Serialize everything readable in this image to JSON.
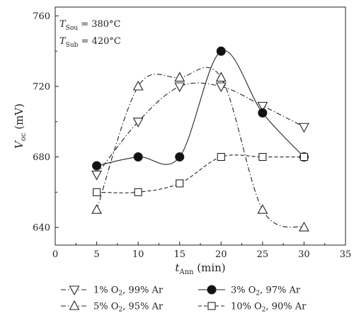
{
  "chart_data": {
    "type": "line",
    "xlabel": {
      "main": "t",
      "sub": "Ann",
      "unit": " (min)"
    },
    "ylabel": {
      "main": "V",
      "sub": "oc",
      "unit": " (mV)"
    },
    "xlim": [
      0,
      35
    ],
    "ylim": [
      630,
      765
    ],
    "xticks": [
      0,
      5,
      10,
      15,
      20,
      25,
      30,
      35
    ],
    "yticks": [
      640,
      680,
      720,
      760
    ],
    "grid": false,
    "legend_placement": "bottom",
    "annotations": [
      {
        "main": "T",
        "sub": "Sou",
        "rest": " = 380°C"
      },
      {
        "main": "T",
        "sub": "Sub",
        "rest": " = 420°C"
      }
    ],
    "series": [
      {
        "name": "1% O2, 99% Ar",
        "label_parts": [
          "1% O",
          "2",
          ", 99% Ar"
        ],
        "marker": "triangle-down",
        "filled": false,
        "dash": "dashdot",
        "x": [
          5,
          10,
          15,
          20,
          25,
          30
        ],
        "y": [
          670,
          700,
          720,
          720,
          709,
          697
        ]
      },
      {
        "name": "3% O2, 97% Ar",
        "label_parts": [
          "3% O",
          "2",
          ", 97% Ar"
        ],
        "marker": "circle",
        "filled": true,
        "dash": "solid",
        "x": [
          5,
          10,
          15,
          20,
          25,
          30
        ],
        "y": [
          675,
          680,
          680,
          740,
          705,
          680
        ]
      },
      {
        "name": "5% O2, 95% Ar",
        "label_parts": [
          "5% O",
          "2",
          ", 95% Ar"
        ],
        "marker": "triangle-up",
        "filled": false,
        "dash": "dashdot",
        "x": [
          5,
          10,
          15,
          20,
          25,
          30
        ],
        "y": [
          650,
          720,
          725,
          725,
          650,
          640
        ]
      },
      {
        "name": "10% O2, 90% Ar",
        "label_parts": [
          "10% O",
          "2",
          ", 90% Ar"
        ],
        "marker": "square",
        "filled": false,
        "dash": "dashed",
        "x": [
          5,
          10,
          15,
          20,
          25,
          30
        ],
        "y": [
          660,
          660,
          665,
          680,
          680,
          680
        ]
      }
    ],
    "colors": {
      "line": "#222222",
      "marker_edge": "#222222",
      "marker_fill_open": "#ffffff",
      "marker_fill_solid": "#111111"
    }
  }
}
